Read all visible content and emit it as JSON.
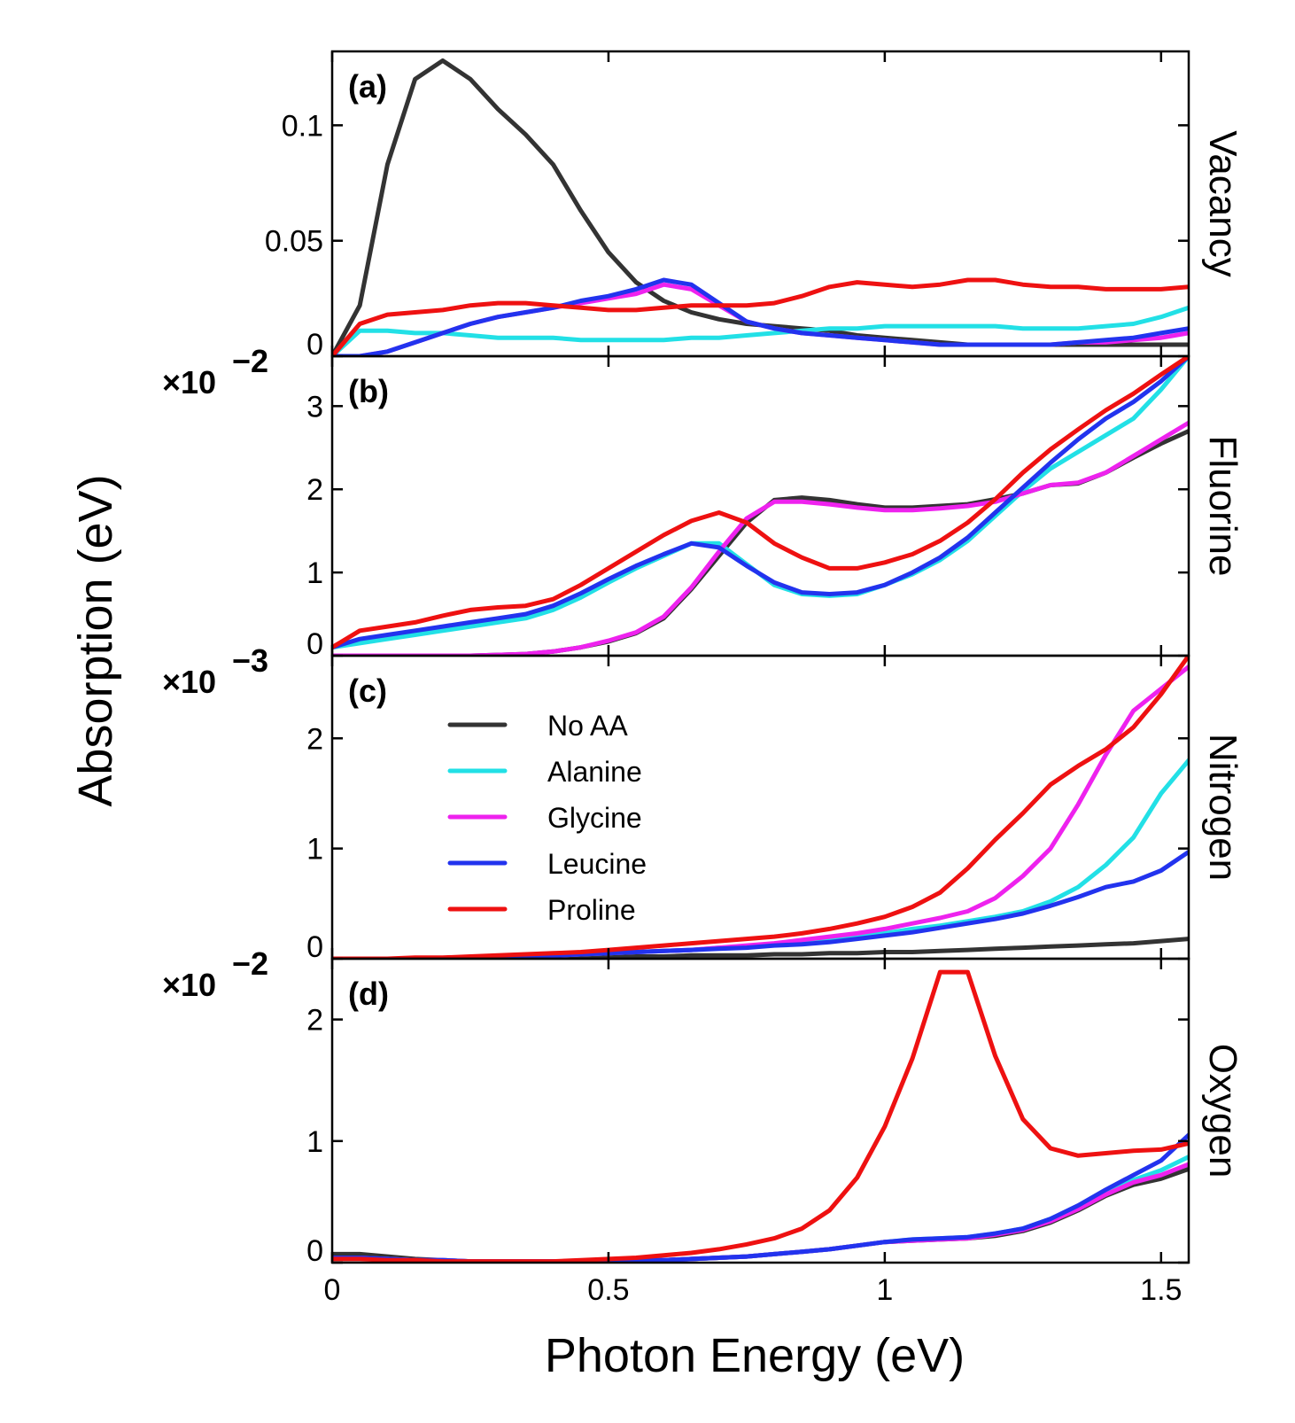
{
  "chart_data": {
    "type": "line",
    "xlabel": "Photon Energy (eV)",
    "ylabel": "Absorption (eV)",
    "xlim": [
      0,
      1.55
    ],
    "xticks": [
      0,
      0.5,
      1,
      1.5
    ],
    "xtick_labels": [
      "0",
      "0.5",
      "1",
      "1.5"
    ],
    "legend": {
      "placement": "panel (c), top-left",
      "entries": [
        "No AA",
        "Alanine",
        "Glycine",
        "Leucine",
        "Proline"
      ]
    },
    "colors": {
      "No AA": "#333333",
      "Alanine": "#22e0e6",
      "Glycine": "#ee22ee",
      "Leucine": "#2233ee",
      "Proline": "#ee1111"
    },
    "panels": [
      {
        "tag": "(a)",
        "side_label": "Vacancy",
        "multiplier": "",
        "ylim": [
          0,
          0.132
        ],
        "yticks": [
          0,
          0.05,
          0.1
        ],
        "ytick_labels": [
          "0",
          "0.05",
          "0.1"
        ],
        "x": [
          0,
          0.05,
          0.1,
          0.15,
          0.2,
          0.25,
          0.3,
          0.35,
          0.4,
          0.45,
          0.5,
          0.55,
          0.6,
          0.65,
          0.7,
          0.75,
          0.8,
          0.85,
          0.9,
          0.95,
          1.0,
          1.05,
          1.1,
          1.15,
          1.2,
          1.25,
          1.3,
          1.35,
          1.4,
          1.45,
          1.5,
          1.55
        ],
        "series": [
          {
            "name": "No AA",
            "values": [
              0,
              0.022,
              0.083,
              0.12,
              0.128,
              0.12,
              0.107,
              0.096,
              0.083,
              0.063,
              0.045,
              0.032,
              0.024,
              0.019,
              0.016,
              0.014,
              0.013,
              0.012,
              0.011,
              0.009,
              0.008,
              0.007,
              0.006,
              0.005,
              0.005,
              0.005,
              0.005,
              0.005,
              0.005,
              0.005,
              0.005,
              0.005
            ]
          },
          {
            "name": "Alanine",
            "values": [
              0,
              0.011,
              0.011,
              0.01,
              0.01,
              0.009,
              0.008,
              0.008,
              0.008,
              0.007,
              0.007,
              0.007,
              0.007,
              0.008,
              0.008,
              0.009,
              0.01,
              0.011,
              0.012,
              0.012,
              0.013,
              0.013,
              0.013,
              0.013,
              0.013,
              0.012,
              0.012,
              0.012,
              0.013,
              0.014,
              0.017,
              0.021
            ]
          },
          {
            "name": "Glycine",
            "values": [
              0,
              0,
              0.002,
              0.006,
              0.01,
              0.014,
              0.017,
              0.019,
              0.021,
              0.023,
              0.025,
              0.027,
              0.031,
              0.029,
              0.022,
              0.015,
              0.012,
              0.01,
              0.009,
              0.008,
              0.007,
              0.006,
              0.005,
              0.005,
              0.005,
              0.005,
              0.005,
              0.006,
              0.006,
              0.007,
              0.008,
              0.01
            ]
          },
          {
            "name": "Leucine",
            "values": [
              0,
              0,
              0.002,
              0.006,
              0.01,
              0.014,
              0.017,
              0.019,
              0.021,
              0.024,
              0.026,
              0.029,
              0.033,
              0.031,
              0.023,
              0.015,
              0.012,
              0.01,
              0.009,
              0.008,
              0.007,
              0.006,
              0.005,
              0.005,
              0.005,
              0.005,
              0.005,
              0.006,
              0.007,
              0.008,
              0.01,
              0.012
            ]
          },
          {
            "name": "Proline",
            "values": [
              0,
              0.014,
              0.018,
              0.019,
              0.02,
              0.022,
              0.023,
              0.023,
              0.022,
              0.021,
              0.02,
              0.02,
              0.021,
              0.022,
              0.022,
              0.022,
              0.023,
              0.026,
              0.03,
              0.032,
              0.031,
              0.03,
              0.031,
              0.033,
              0.033,
              0.031,
              0.03,
              0.03,
              0.029,
              0.029,
              0.029,
              0.03
            ]
          }
        ]
      },
      {
        "tag": "(b)",
        "side_label": "Fluorine",
        "multiplier": "×10",
        "multiplier_exp": "−2",
        "ylim": [
          0,
          3.6
        ],
        "yticks": [
          0,
          1,
          2,
          3
        ],
        "ytick_labels": [
          "0",
          "1",
          "2",
          "3"
        ],
        "x": [
          0,
          0.05,
          0.1,
          0.15,
          0.2,
          0.25,
          0.3,
          0.35,
          0.4,
          0.45,
          0.5,
          0.55,
          0.6,
          0.65,
          0.7,
          0.75,
          0.8,
          0.85,
          0.9,
          0.95,
          1.0,
          1.05,
          1.1,
          1.15,
          1.2,
          1.25,
          1.3,
          1.35,
          1.4,
          1.45,
          1.5,
          1.55
        ],
        "series": [
          {
            "name": "No AA",
            "values": [
              0,
              0,
              0,
              0,
              0,
              0,
              0.01,
              0.02,
              0.05,
              0.1,
              0.17,
              0.27,
              0.45,
              0.8,
              1.2,
              1.6,
              1.87,
              1.9,
              1.87,
              1.82,
              1.78,
              1.78,
              1.8,
              1.82,
              1.88,
              1.95,
              2.05,
              2.07,
              2.2,
              2.38,
              2.55,
              2.7
            ]
          },
          {
            "name": "Alanine",
            "values": [
              0.1,
              0.15,
              0.2,
              0.25,
              0.3,
              0.35,
              0.4,
              0.45,
              0.55,
              0.7,
              0.88,
              1.05,
              1.2,
              1.35,
              1.35,
              1.1,
              0.85,
              0.74,
              0.72,
              0.74,
              0.85,
              0.98,
              1.15,
              1.38,
              1.68,
              1.98,
              2.25,
              2.45,
              2.65,
              2.85,
              3.2,
              3.6
            ]
          },
          {
            "name": "Glycine",
            "values": [
              0,
              0,
              0,
              0,
              0,
              0,
              0.01,
              0.02,
              0.05,
              0.1,
              0.18,
              0.28,
              0.47,
              0.82,
              1.25,
              1.65,
              1.85,
              1.85,
              1.82,
              1.78,
              1.75,
              1.75,
              1.77,
              1.8,
              1.85,
              1.95,
              2.05,
              2.08,
              2.2,
              2.4,
              2.6,
              2.8
            ]
          },
          {
            "name": "Leucine",
            "values": [
              0.1,
              0.2,
              0.25,
              0.3,
              0.35,
              0.4,
              0.45,
              0.5,
              0.6,
              0.75,
              0.92,
              1.08,
              1.22,
              1.35,
              1.3,
              1.08,
              0.88,
              0.76,
              0.74,
              0.76,
              0.85,
              1.0,
              1.18,
              1.42,
              1.72,
              2.02,
              2.32,
              2.6,
              2.85,
              3.05,
              3.3,
              3.6
            ]
          },
          {
            "name": "Proline",
            "values": [
              0.1,
              0.3,
              0.35,
              0.4,
              0.48,
              0.55,
              0.58,
              0.6,
              0.68,
              0.85,
              1.05,
              1.25,
              1.45,
              1.62,
              1.72,
              1.6,
              1.35,
              1.18,
              1.05,
              1.05,
              1.12,
              1.22,
              1.38,
              1.6,
              1.88,
              2.2,
              2.48,
              2.72,
              2.95,
              3.15,
              3.38,
              3.6
            ]
          }
        ]
      },
      {
        "tag": "(c)",
        "side_label": "Nitrogen",
        "multiplier": "×10",
        "multiplier_exp": "−3",
        "ylim": [
          0,
          2.75
        ],
        "yticks": [
          0,
          1,
          2
        ],
        "ytick_labels": [
          "0",
          "1",
          "2"
        ],
        "x": [
          0,
          0.05,
          0.1,
          0.15,
          0.2,
          0.25,
          0.3,
          0.35,
          0.4,
          0.45,
          0.5,
          0.55,
          0.6,
          0.65,
          0.7,
          0.75,
          0.8,
          0.85,
          0.9,
          0.95,
          1.0,
          1.05,
          1.1,
          1.15,
          1.2,
          1.25,
          1.3,
          1.35,
          1.4,
          1.45,
          1.5,
          1.55
        ],
        "series": [
          {
            "name": "No AA",
            "values": [
              0,
              0,
              0,
              0,
              0,
              0,
              0,
              0.01,
              0.01,
              0.01,
              0.02,
              0.02,
              0.02,
              0.03,
              0.03,
              0.03,
              0.04,
              0.04,
              0.05,
              0.05,
              0.06,
              0.06,
              0.07,
              0.08,
              0.09,
              0.1,
              0.11,
              0.12,
              0.13,
              0.14,
              0.16,
              0.18
            ]
          },
          {
            "name": "Alanine",
            "values": [
              0,
              0,
              0,
              0,
              0,
              0.01,
              0.01,
              0.02,
              0.03,
              0.04,
              0.05,
              0.06,
              0.07,
              0.08,
              0.1,
              0.11,
              0.13,
              0.15,
              0.17,
              0.2,
              0.23,
              0.27,
              0.3,
              0.34,
              0.38,
              0.43,
              0.52,
              0.65,
              0.85,
              1.1,
              1.5,
              1.8
            ]
          },
          {
            "name": "Glycine",
            "values": [
              0,
              0,
              0,
              0,
              0,
              0.01,
              0.01,
              0.02,
              0.03,
              0.04,
              0.05,
              0.06,
              0.07,
              0.08,
              0.1,
              0.12,
              0.14,
              0.17,
              0.2,
              0.23,
              0.27,
              0.32,
              0.37,
              0.43,
              0.55,
              0.75,
              1.0,
              1.4,
              1.85,
              2.25,
              2.45,
              2.65
            ]
          },
          {
            "name": "Leucine",
            "values": [
              0,
              0,
              0,
              0,
              0,
              0.01,
              0.01,
              0.02,
              0.03,
              0.04,
              0.05,
              0.06,
              0.07,
              0.08,
              0.09,
              0.1,
              0.12,
              0.13,
              0.15,
              0.18,
              0.21,
              0.24,
              0.28,
              0.32,
              0.36,
              0.41,
              0.48,
              0.56,
              0.65,
              0.7,
              0.8,
              0.97
            ]
          },
          {
            "name": "Proline",
            "values": [
              0,
              0,
              0,
              0.01,
              0.01,
              0.02,
              0.03,
              0.04,
              0.05,
              0.06,
              0.08,
              0.1,
              0.12,
              0.14,
              0.16,
              0.18,
              0.2,
              0.23,
              0.27,
              0.32,
              0.38,
              0.47,
              0.6,
              0.82,
              1.08,
              1.32,
              1.58,
              1.75,
              1.9,
              2.1,
              2.4,
              2.75
            ]
          }
        ]
      },
      {
        "tag": "(d)",
        "side_label": "Oxygen",
        "multiplier": "×10",
        "multiplier_exp": "−2",
        "ylim": [
          0,
          2.5
        ],
        "yticks": [
          0,
          1,
          2
        ],
        "ytick_labels": [
          "0",
          "1",
          "2"
        ],
        "x": [
          0,
          0.05,
          0.1,
          0.15,
          0.2,
          0.25,
          0.3,
          0.35,
          0.4,
          0.45,
          0.5,
          0.55,
          0.6,
          0.65,
          0.7,
          0.75,
          0.8,
          0.85,
          0.9,
          0.95,
          1.0,
          1.05,
          1.1,
          1.15,
          1.2,
          1.25,
          1.3,
          1.35,
          1.4,
          1.45,
          1.5,
          1.55
        ],
        "series": [
          {
            "name": "No AA",
            "values": [
              0.07,
              0.07,
              0.05,
              0.03,
              0.02,
              0.01,
              0.01,
              0.01,
              0.01,
              0.01,
              0.01,
              0.02,
              0.02,
              0.03,
              0.04,
              0.05,
              0.07,
              0.09,
              0.11,
              0.14,
              0.17,
              0.18,
              0.19,
              0.2,
              0.22,
              0.26,
              0.33,
              0.43,
              0.55,
              0.64,
              0.69,
              0.77
            ]
          },
          {
            "name": "Alanine",
            "values": [
              0.03,
              0.03,
              0.03,
              0.02,
              0.02,
              0.01,
              0.01,
              0.01,
              0.01,
              0.01,
              0.01,
              0.02,
              0.02,
              0.03,
              0.04,
              0.05,
              0.07,
              0.09,
              0.11,
              0.14,
              0.17,
              0.19,
              0.2,
              0.21,
              0.24,
              0.28,
              0.36,
              0.46,
              0.58,
              0.68,
              0.76,
              0.87
            ]
          },
          {
            "name": "Glycine",
            "values": [
              0.04,
              0.04,
              0.03,
              0.02,
              0.02,
              0.01,
              0.01,
              0.01,
              0.01,
              0.01,
              0.01,
              0.02,
              0.02,
              0.03,
              0.04,
              0.05,
              0.07,
              0.09,
              0.11,
              0.14,
              0.17,
              0.18,
              0.19,
              0.2,
              0.23,
              0.27,
              0.34,
              0.44,
              0.56,
              0.66,
              0.72,
              0.81
            ]
          },
          {
            "name": "Leucine",
            "values": [
              0.04,
              0.04,
              0.03,
              0.02,
              0.02,
              0.01,
              0.01,
              0.01,
              0.01,
              0.01,
              0.01,
              0.02,
              0.02,
              0.03,
              0.04,
              0.05,
              0.07,
              0.09,
              0.11,
              0.14,
              0.17,
              0.19,
              0.2,
              0.21,
              0.24,
              0.28,
              0.36,
              0.47,
              0.6,
              0.72,
              0.84,
              1.05
            ]
          },
          {
            "name": "Proline",
            "values": [
              0.03,
              0.03,
              0.02,
              0.02,
              0.01,
              0.01,
              0.01,
              0.01,
              0.01,
              0.02,
              0.03,
              0.04,
              0.06,
              0.08,
              0.11,
              0.15,
              0.2,
              0.28,
              0.43,
              0.7,
              1.12,
              1.68,
              2.39,
              2.39,
              1.7,
              1.18,
              0.94,
              0.88,
              0.9,
              0.92,
              0.93,
              0.98
            ]
          }
        ]
      }
    ]
  }
}
